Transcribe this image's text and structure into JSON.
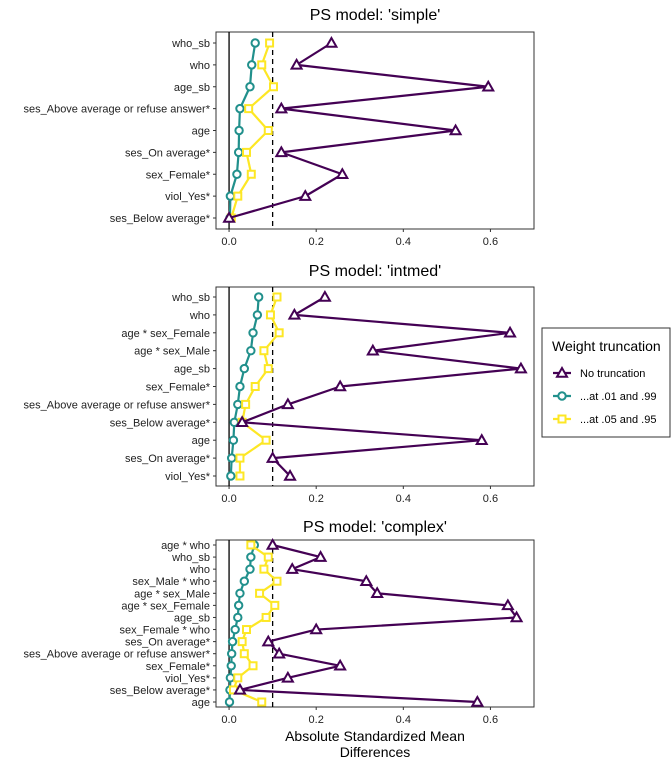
{
  "chart_data": {
    "type": "scatter",
    "xlabel": [
      "Absolute Standardized Mean",
      "Differences"
    ],
    "xlim": [
      -0.03,
      0.7
    ],
    "xticks": [
      0.0,
      0.2,
      0.4,
      0.6
    ],
    "xtick_labels": [
      "0.0",
      "0.2",
      "0.4",
      "0.6"
    ],
    "vlines": [
      {
        "x": 0,
        "style": "solid"
      },
      {
        "x": 0.1,
        "style": "dashed"
      }
    ],
    "legend": {
      "title": "Weight truncation",
      "position": "right",
      "entries": [
        {
          "label": "No truncation",
          "color": "#440154",
          "marker": "triangle"
        },
        {
          "label": "...at .01 and .99",
          "color": "#21908C",
          "marker": "circle"
        },
        {
          "label": "...at .05 and .95",
          "color": "#FDE725",
          "marker": "square"
        }
      ]
    },
    "panels": [
      {
        "title": "PS model: 'simple'",
        "categories": [
          "who_sb",
          "who",
          "age_sb",
          "ses_Above average or refuse answer*",
          "age",
          "ses_On average*",
          "sex_Female*",
          "viol_Yes*",
          "ses_Below average*"
        ],
        "series": [
          {
            "name": "No truncation",
            "values": [
              0.235,
              0.155,
              0.595,
              0.12,
              0.52,
              0.12,
              0.26,
              0.175,
              0.0
            ]
          },
          {
            "name": "...at .01 and .99",
            "values": [
              0.06,
              0.052,
              0.048,
              0.025,
              0.023,
              0.022,
              0.018,
              0.003,
              0.002
            ]
          },
          {
            "name": "...at .05 and .95",
            "values": [
              0.093,
              0.075,
              0.102,
              0.045,
              0.09,
              0.04,
              0.051,
              0.02,
              0.005
            ]
          }
        ]
      },
      {
        "title": "PS model: 'intmed'",
        "categories": [
          "who_sb",
          "who",
          "age * sex_Female",
          "age * sex_Male",
          "age_sb",
          "sex_Female*",
          "ses_Above average or refuse answer*",
          "ses_Below average*",
          "age",
          "ses_On average*",
          "viol_Yes*"
        ],
        "series": [
          {
            "name": "No truncation",
            "values": [
              0.22,
              0.15,
              0.645,
              0.33,
              0.67,
              0.255,
              0.135,
              0.03,
              0.58,
              0.1,
              0.14
            ]
          },
          {
            "name": "...at .01 and .99",
            "values": [
              0.068,
              0.065,
              0.055,
              0.05,
              0.035,
              0.025,
              0.02,
              0.012,
              0.01,
              0.006,
              0.004
            ]
          },
          {
            "name": "...at .05 and .95",
            "values": [
              0.11,
              0.095,
              0.115,
              0.08,
              0.09,
              0.06,
              0.038,
              0.03,
              0.085,
              0.025,
              0.025
            ]
          }
        ]
      },
      {
        "title": "PS model: 'complex'",
        "categories": [
          "age * who",
          "who_sb",
          "who",
          "sex_Male * who",
          "age * sex_Male",
          "age * sex_Female",
          "age_sb",
          "sex_Female * who",
          "ses_On average*",
          "ses_Above average or refuse answer*",
          "sex_Female*",
          "viol_Yes*",
          "ses_Below average*",
          "age"
        ],
        "series": [
          {
            "name": "No truncation",
            "values": [
              0.1,
              0.21,
              0.145,
              0.315,
              0.34,
              0.64,
              0.66,
              0.2,
              0.09,
              0.115,
              0.255,
              0.135,
              0.025,
              0.57
            ]
          },
          {
            "name": "...at .01 and .99",
            "values": [
              0.058,
              0.05,
              0.048,
              0.035,
              0.025,
              0.022,
              0.02,
              0.014,
              0.008,
              0.006,
              0.005,
              0.003,
              0.002,
              0.001
            ]
          },
          {
            "name": "...at .05 and .95",
            "values": [
              0.05,
              0.09,
              0.08,
              0.11,
              0.07,
              0.105,
              0.085,
              0.04,
              0.03,
              0.035,
              0.055,
              0.02,
              0.01,
              0.075
            ]
          }
        ]
      }
    ]
  }
}
